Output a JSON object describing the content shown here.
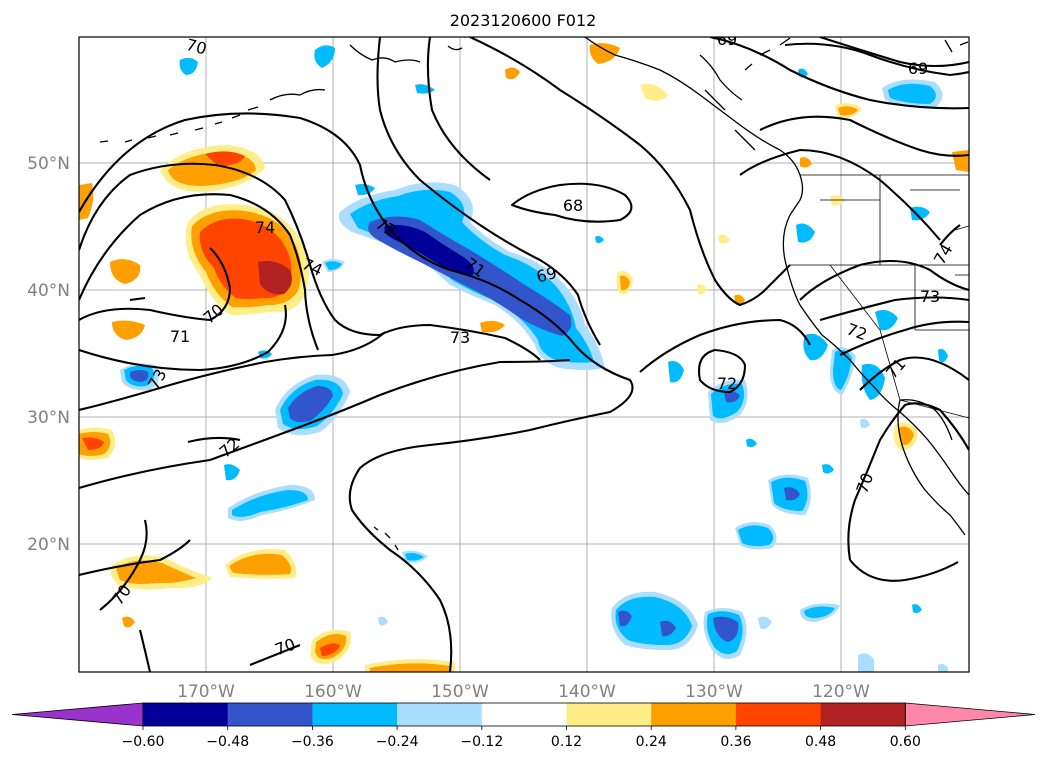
{
  "title": "2023120600 F012",
  "map": {
    "lat_labels": [
      "50°N",
      "40°N",
      "30°N",
      "20°N"
    ],
    "lon_labels": [
      "170°W",
      "160°W",
      "150°W",
      "140°W",
      "130°W",
      "120°W"
    ],
    "contour_labels": [
      "70",
      "74",
      "74",
      "70",
      "71",
      "73",
      "72",
      "72",
      "71",
      "69",
      "68",
      "73",
      "69",
      "72",
      "72",
      "71",
      "73",
      "74",
      "70",
      "70",
      "70",
      "69"
    ]
  },
  "colorbar": {
    "ticks": [
      "−0.60",
      "−0.48",
      "−0.36",
      "−0.24",
      "−0.12",
      "0.12",
      "0.24",
      "0.36",
      "0.48",
      "0.60"
    ],
    "colors": [
      "#9933cc",
      "#000099",
      "#3355cc",
      "#00bbff",
      "#aaddff",
      "#ffffff",
      "#ffee88",
      "#ffa000",
      "#ff4400",
      "#b22222",
      "#ff88aa"
    ]
  }
}
